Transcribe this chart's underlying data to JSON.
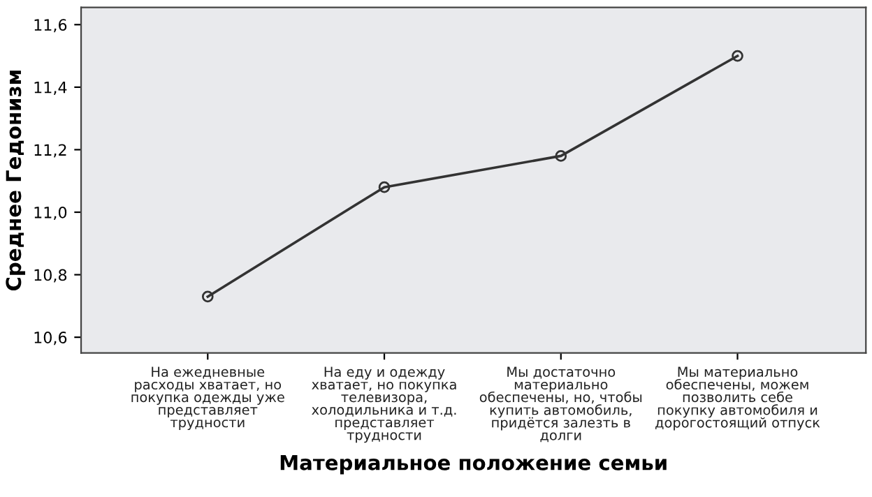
{
  "chart_data": {
    "type": "line",
    "xlabel": "Материальное положение семьи",
    "ylabel": "Среднее Гедонизм",
    "categories": [
      "На ежедневные\nрасходы хватает, но\nпокупка одежды уже\nпредставляет\nтрудности",
      "На еду и одежду\nхватает, но покупка\nтелевизора,\nхолодильника и т.д.\nпредставляет\nтрудности",
      "Мы достаточно\nматериально\nобеспечены, но, чтобы\nкупить автомобиль,\nпридётся залезть в\nдолги",
      "Мы материально\nобеспечены, можем\nпозволить себе\nпокупку автомобиля и\nдорогостоящий отпуск"
    ],
    "series": [
      {
        "color": "#333333",
        "values": [
          10.73,
          11.08,
          11.18,
          11.5
        ]
      }
    ],
    "ylim": [
      10.55,
      11.655
    ],
    "yticks": [
      {
        "value": 10.6,
        "label": "10,6"
      },
      {
        "value": 10.8,
        "label": "10,8"
      },
      {
        "value": 11.0,
        "label": "11,0"
      },
      {
        "value": 11.2,
        "label": "11,2"
      },
      {
        "value": 11.4,
        "label": "11,4"
      },
      {
        "value": 11.6,
        "label": "11,6"
      }
    ],
    "marker": "circle",
    "line_style": "solid",
    "grid": false,
    "legend": false
  }
}
